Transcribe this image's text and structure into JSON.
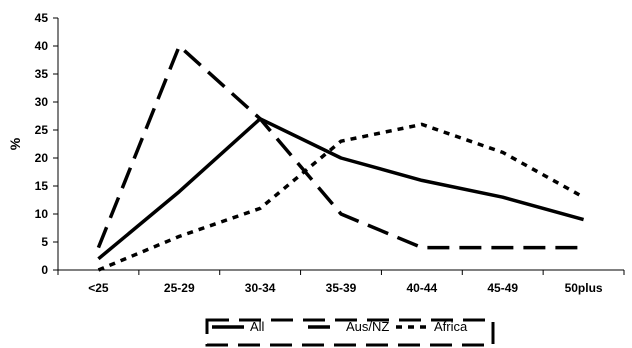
{
  "chart_data": {
    "type": "line",
    "title": "",
    "xlabel": "",
    "ylabel": "%",
    "categories": [
      "<25",
      "25-29",
      "30-34",
      "35-39",
      "40-44",
      "45-49",
      "50plus"
    ],
    "ylim": [
      0,
      45
    ],
    "yticks": [
      0,
      5,
      10,
      15,
      20,
      25,
      30,
      35,
      40,
      45
    ],
    "grid": false,
    "legend_position": "bottom",
    "series": [
      {
        "name": "All",
        "values": [
          2,
          14,
          27,
          20,
          16,
          13,
          9
        ],
        "style": "solid",
        "color": "#000000"
      },
      {
        "name": "Aus/NZ",
        "values": [
          4,
          40,
          27,
          10,
          4,
          4,
          4
        ],
        "style": "dashed",
        "color": "#000000"
      },
      {
        "name": "Africa",
        "values": [
          0,
          6,
          11,
          23,
          26,
          21,
          13
        ],
        "style": "dotted",
        "color": "#000000"
      }
    ]
  }
}
